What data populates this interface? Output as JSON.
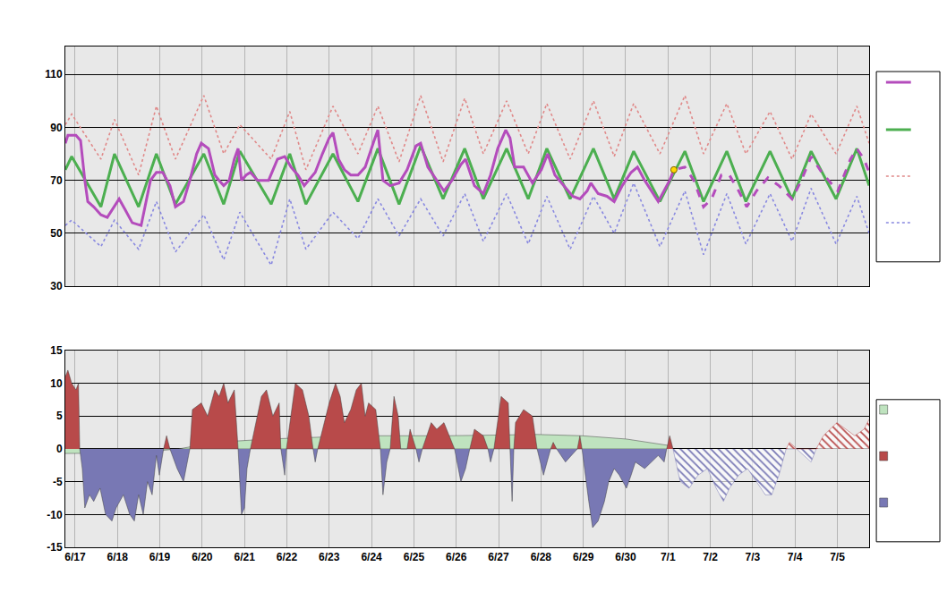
{
  "chart_data": [
    {
      "type": "line",
      "xlim": [
        -0.23,
        18.75
      ],
      "xticks": [
        0,
        1,
        2,
        3,
        4,
        5,
        6,
        7,
        8,
        9,
        10,
        11,
        12,
        13,
        14,
        15,
        16,
        17,
        18
      ],
      "ylim": [
        30,
        120.5
      ],
      "yticks": [
        30,
        50,
        70,
        90,
        110
      ],
      "grid": true,
      "tick_labels": "y",
      "series": [
        {
          "color": "#e08888",
          "line_style": "dotted",
          "x": [
            -0.23,
            -0.08,
            0.61,
            0.93,
            1.5,
            1.92,
            2.37,
            3.04,
            3.51,
            3.89,
            4.63,
            5.07,
            5.45,
            6.09,
            6.68,
            7.15,
            7.65,
            8.16,
            8.69,
            9.2,
            9.64,
            10.19,
            10.7,
            11.14,
            11.69,
            12.24,
            12.73,
            13.19,
            13.81,
            14.4,
            14.84,
            15.39,
            15.84,
            16.41,
            16.93,
            17.38,
            17.97,
            18.46,
            18.75
          ],
          "values": [
            91,
            95,
            78,
            93,
            72,
            98,
            78,
            102,
            80,
            91,
            78,
            96,
            74,
            98,
            80,
            98,
            77,
            102,
            77,
            101,
            80,
            100,
            80,
            99,
            78,
            100,
            79,
            99,
            80,
            102,
            80,
            99,
            80,
            96,
            78,
            95,
            80,
            98,
            84
          ]
        },
        {
          "color": "#8888e0",
          "line_style": "dotted",
          "x": [
            -0.23,
            -0.08,
            0.61,
            0.93,
            1.5,
            1.92,
            2.37,
            3.04,
            3.51,
            3.89,
            4.63,
            5.07,
            5.45,
            6.09,
            6.68,
            7.15,
            7.65,
            8.16,
            8.69,
            9.2,
            9.64,
            10.19,
            10.7,
            11.14,
            11.69,
            12.24,
            12.73,
            13.19,
            13.81,
            14.4,
            14.84,
            15.39,
            15.84,
            16.41,
            16.93,
            17.38,
            17.97,
            18.46,
            18.75
          ],
          "values": [
            53,
            55,
            45,
            55,
            44,
            62,
            43,
            57,
            40,
            58,
            38,
            63,
            44,
            58,
            48,
            63,
            49,
            63,
            49,
            65,
            47,
            65,
            46,
            64,
            44,
            64,
            50,
            69,
            45,
            66,
            42,
            65,
            46,
            65,
            47,
            67,
            46,
            64,
            50
          ]
        },
        {
          "color": "#4caf50",
          "line_style": "solid",
          "x": [
            -0.23,
            -0.08,
            0.61,
            0.93,
            1.5,
            1.92,
            2.37,
            3.04,
            3.51,
            3.89,
            4.63,
            5.07,
            5.45,
            6.09,
            6.68,
            7.15,
            7.65,
            8.16,
            8.69,
            9.2,
            9.64,
            10.19,
            10.7,
            11.14,
            11.69,
            12.24,
            12.73,
            13.19,
            13.81,
            14.4,
            14.84,
            15.39,
            15.84,
            16.41,
            16.93,
            17.38,
            17.97,
            18.46,
            18.75
          ],
          "values": [
            74,
            79,
            60,
            80,
            60,
            80,
            61,
            80,
            61,
            81,
            61,
            80,
            61,
            80,
            62,
            82,
            61,
            83,
            63,
            82,
            63,
            82,
            63,
            82,
            63,
            82,
            63,
            81,
            62,
            81,
            62,
            81,
            62,
            81,
            63,
            81,
            63,
            82,
            68
          ]
        },
        {
          "color": "#b44cbc",
          "line_style": "solid",
          "x": [
            -0.23,
            -0.17,
            0.02,
            0.13,
            0.23,
            0.3,
            0.44,
            0.61,
            0.76,
            0.93,
            1.04,
            1.18,
            1.35,
            1.56,
            1.65,
            1.78,
            1.92,
            2.07,
            2.24,
            2.37,
            2.56,
            2.71,
            2.87,
            2.98,
            3.15,
            3.3,
            3.4,
            3.51,
            3.64,
            3.76,
            3.85,
            3.93,
            4.04,
            4.14,
            4.31,
            4.57,
            4.78,
            4.95,
            5.1,
            5.26,
            5.41,
            5.52,
            5.67,
            5.84,
            6.0,
            6.09,
            6.22,
            6.36,
            6.51,
            6.68,
            6.85,
            7.06,
            7.15,
            7.27,
            7.44,
            7.65,
            7.84,
            8.05,
            8.16,
            8.33,
            8.54,
            8.71,
            8.9,
            9.11,
            9.22,
            9.43,
            9.64,
            9.81,
            9.98,
            10.17,
            10.27,
            10.38,
            10.59,
            10.8,
            11.01,
            11.16,
            11.33,
            11.54,
            11.75,
            11.92,
            12.09,
            12.18,
            12.35,
            12.56,
            12.73,
            12.92,
            13.13,
            13.28,
            13.45,
            13.77,
            13.91,
            14.04
          ],
          "values": [
            84,
            87,
            87,
            85,
            70,
            62,
            60,
            57,
            56,
            60,
            63,
            59,
            54,
            53,
            60,
            70,
            73,
            73,
            68,
            60,
            62,
            70,
            80,
            84,
            82,
            72,
            70,
            68,
            70,
            78,
            82,
            70,
            72,
            73,
            70,
            70,
            78,
            79,
            75,
            72,
            68,
            70,
            73,
            80,
            86,
            88,
            78,
            74,
            72,
            72,
            75,
            85,
            89,
            70,
            68,
            69,
            74,
            83,
            84,
            75,
            70,
            66,
            70,
            76,
            78,
            68,
            65,
            72,
            82,
            89,
            86,
            75,
            75,
            69,
            74,
            80,
            72,
            68,
            64,
            63,
            66,
            69,
            65,
            64,
            62,
            68,
            73,
            75,
            70,
            62,
            66,
            70
          ]
        },
        {
          "color": "#b44cbc",
          "line_style": "dashed",
          "x": [
            14.04,
            14.14,
            14.4,
            14.61,
            14.84,
            15.03,
            15.26,
            15.45,
            15.67,
            15.86,
            16.09,
            16.36,
            16.62,
            16.93,
            17.15,
            17.38,
            17.63,
            17.89,
            18.01,
            18.31,
            18.46,
            18.63,
            18.75
          ],
          "values": [
            70,
            74,
            75,
            70,
            60,
            63,
            72,
            72,
            66,
            60,
            66,
            71,
            68,
            63,
            70,
            79,
            73,
            68,
            66,
            78,
            82,
            78,
            73
          ]
        },
        {
          "color": "#ffd700",
          "marker": "circle",
          "x": [
            14.14
          ],
          "values": [
            74
          ]
        }
      ]
    },
    {
      "type": "area",
      "xlim": [
        -0.23,
        18.75
      ],
      "xticks": [
        {
          "value": 0,
          "label": "6/17"
        },
        {
          "value": 1,
          "label": "6/18"
        },
        {
          "value": 2,
          "label": "6/19"
        },
        {
          "value": 3,
          "label": "6/20"
        },
        {
          "value": 4,
          "label": "6/21"
        },
        {
          "value": 5,
          "label": "6/22"
        },
        {
          "value": 6,
          "label": "6/23"
        },
        {
          "value": 7,
          "label": "6/24"
        },
        {
          "value": 8,
          "label": "6/25"
        },
        {
          "value": 9,
          "label": "6/26"
        },
        {
          "value": 10,
          "label": "6/27"
        },
        {
          "value": 11,
          "label": "6/28"
        },
        {
          "value": 12,
          "label": "6/29"
        },
        {
          "value": 13,
          "label": "6/30"
        },
        {
          "value": 14,
          "label": "7/1"
        },
        {
          "value": 15,
          "label": "7/2"
        },
        {
          "value": 16,
          "label": "7/3"
        },
        {
          "value": 17,
          "label": "7/4"
        },
        {
          "value": 18,
          "label": "7/5"
        }
      ],
      "ylim": [
        -15,
        15
      ],
      "yticks": [
        -15,
        -10,
        -5,
        0,
        5,
        10,
        15
      ],
      "grid": true,
      "series": [
        {
          "color": "#bfe3bf",
          "line_style": "solid",
          "x": [
            -0.23,
            1.4,
            2.45,
            3.3,
            4.57,
            6.68,
            8.79,
            10.91,
            11.97,
            13.02,
            14.04,
            14.12
          ],
          "values": [
            -0.7,
            -0.6,
            0,
            1,
            1.5,
            2,
            2,
            2.2,
            2,
            1.5,
            0.5,
            0
          ]
        },
        {
          "color": "#b84a4a",
          "line_style": "solid",
          "x": [
            -0.23,
            -0.17,
            -0.08,
            0.02,
            0.08,
            0.11,
            2.09,
            2.16,
            2.24,
            2.71,
            2.77,
            2.98,
            3.13,
            3.3,
            3.4,
            3.51,
            3.61,
            3.76,
            3.85,
            4.14,
            4.4,
            4.52,
            4.67,
            4.82,
            4.86,
            4.99,
            5.2,
            5.37,
            5.52,
            5.62,
            5.73,
            6.0,
            6.15,
            6.26,
            6.36,
            6.51,
            6.64,
            6.76,
            6.85,
            6.93,
            7.1,
            7.21,
            7.44,
            7.53,
            7.63,
            7.69,
            7.84,
            7.91,
            8.05,
            8.2,
            8.41,
            8.54,
            8.71,
            8.96,
            9.32,
            9.43,
            9.64,
            9.75,
            9.89,
            10.06,
            10.23,
            10.27,
            10.36,
            10.4,
            10.59,
            10.8,
            10.91,
            11.23,
            11.29,
            11.37,
            11.86,
            11.92,
            11.97,
            13.97,
            14.04,
            14.12
          ],
          "values": [
            11,
            12,
            10,
            9,
            10,
            0,
            0,
            2,
            0,
            0,
            6,
            7,
            5,
            9,
            8,
            10,
            7,
            9,
            0,
            0,
            8,
            9,
            5,
            7,
            0,
            0,
            10,
            9,
            5,
            0,
            0,
            7,
            10,
            8,
            4,
            6,
            9,
            10,
            5,
            7,
            6,
            0,
            0,
            8,
            5,
            0,
            0,
            3,
            0,
            0,
            4,
            3,
            4,
            0,
            0,
            3,
            2,
            0,
            0,
            8,
            7,
            0,
            0,
            4,
            6,
            5,
            0,
            0,
            1,
            0,
            0,
            2,
            0,
            0,
            2,
            0
          ]
        },
        {
          "color": "#7878b4",
          "line_style": "solid",
          "x": [
            0.11,
            0.17,
            0.23,
            0.34,
            0.44,
            0.59,
            0.72,
            0.87,
            0.97,
            1.14,
            1.29,
            1.4,
            1.5,
            1.61,
            1.71,
            1.82,
            1.92,
            1.99,
            2.09,
            2.24,
            2.41,
            2.56,
            2.71,
            3.85,
            3.93,
            4.0,
            4.06,
            4.14,
            4.86,
            4.95,
            4.99,
            5.62,
            5.67,
            5.73,
            7.21,
            7.27,
            7.36,
            7.44,
            8.05,
            8.12,
            8.2,
            8.96,
            9.11,
            9.22,
            9.32,
            9.75,
            9.81,
            9.89,
            10.27,
            10.32,
            10.36,
            10.91,
            11.06,
            11.23,
            11.37,
            11.58,
            11.86,
            11.97,
            12.13,
            12.22,
            12.35,
            12.5,
            12.6,
            12.73,
            12.85,
            13.02,
            13.13,
            13.23,
            13.45,
            13.77,
            13.91,
            13.97
          ],
          "values": [
            0,
            -3,
            -9,
            -7,
            -8,
            -6,
            -10,
            -11,
            -9,
            -7,
            -10,
            -11,
            -7,
            -10,
            -5,
            -7,
            -1,
            -4,
            0,
            0,
            -3,
            -5,
            0,
            0,
            -10,
            -9,
            -3,
            0,
            0,
            -4,
            0,
            0,
            -2,
            0,
            0,
            -7,
            -2,
            0,
            0,
            -2,
            0,
            0,
            -5,
            -3,
            0,
            0,
            -2,
            0,
            0,
            -8,
            0,
            0,
            -4,
            0,
            0,
            -2,
            0,
            0,
            -8,
            -12,
            -11,
            -8,
            -5,
            -3,
            -4,
            -6,
            -4,
            -2,
            -3,
            -1,
            -2,
            0
          ]
        },
        {
          "color": "#7878b4",
          "line_style": "hatched",
          "x": [
            14.12,
            14.29,
            14.5,
            14.71,
            14.93,
            15.14,
            15.31,
            15.45,
            15.67,
            15.88,
            16.09,
            16.3,
            16.45,
            16.62,
            16.79,
            17.04,
            17.21,
            17.38,
            17.5
          ],
          "values": [
            0,
            -5,
            -6,
            -4,
            -3,
            -6,
            -8,
            -6,
            -4,
            -3,
            -5,
            -7,
            -7,
            -4,
            0,
            0,
            -1,
            -2,
            0
          ]
        },
        {
          "color": "#b84a4a",
          "line_style": "hatched",
          "x": [
            16.79,
            16.87,
            16.96,
            17.04,
            17.5,
            17.67,
            17.99,
            18.2,
            18.41,
            18.63,
            18.75
          ],
          "values": [
            0,
            1,
            0.5,
            0,
            0,
            2,
            4,
            3,
            2,
            3,
            4.5
          ]
        }
      ]
    }
  ]
}
